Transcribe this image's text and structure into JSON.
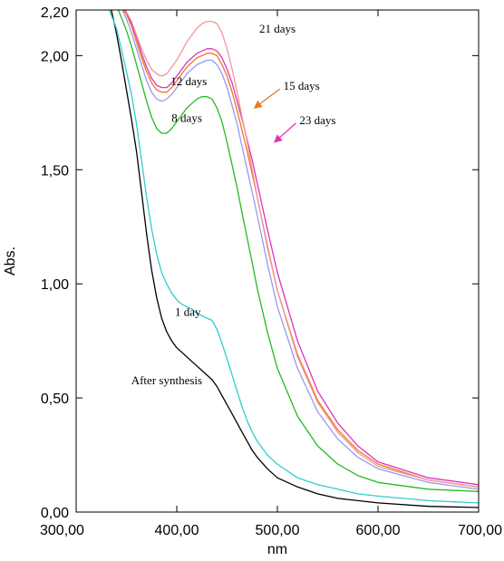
{
  "chart_data": {
    "type": "line",
    "xlabel": "nm",
    "ylabel": "Abs.",
    "xlim": [
      300,
      700
    ],
    "ylim": [
      0,
      2.2
    ],
    "x_ticks": [
      300,
      400,
      500,
      600,
      700
    ],
    "x_tick_labels": [
      "300,00",
      "400,00",
      "500,00",
      "600,00",
      "700,00"
    ],
    "y_ticks": [
      0,
      0.5,
      1.0,
      1.5,
      2.0,
      2.2
    ],
    "y_tick_labels": [
      "0,00",
      "0,50",
      "1,00",
      "1,50",
      "2,00",
      "2,20"
    ],
    "grid": false,
    "legend": "none",
    "series": [
      {
        "name": "After synthesis",
        "color": "#000000",
        "x": [
          335,
          340,
          345,
          350,
          355,
          360,
          365,
          370,
          375,
          380,
          385,
          390,
          395,
          400,
          405,
          410,
          415,
          420,
          425,
          430,
          435,
          440,
          445,
          450,
          455,
          460,
          465,
          470,
          475,
          480,
          490,
          500,
          520,
          540,
          560,
          580,
          600,
          650,
          700
        ],
        "y": [
          2.2,
          2.1,
          1.98,
          1.85,
          1.72,
          1.58,
          1.4,
          1.22,
          1.06,
          0.94,
          0.85,
          0.79,
          0.75,
          0.72,
          0.7,
          0.68,
          0.66,
          0.64,
          0.62,
          0.6,
          0.58,
          0.55,
          0.51,
          0.47,
          0.43,
          0.39,
          0.35,
          0.31,
          0.27,
          0.24,
          0.19,
          0.15,
          0.11,
          0.08,
          0.06,
          0.05,
          0.04,
          0.025,
          0.02
        ]
      },
      {
        "name": "1 day",
        "color": "#33cccc",
        "x": [
          333,
          340,
          345,
          350,
          355,
          360,
          365,
          370,
          375,
          380,
          385,
          390,
          395,
          400,
          405,
          410,
          415,
          420,
          425,
          430,
          435,
          440,
          445,
          450,
          455,
          460,
          465,
          470,
          475,
          480,
          490,
          500,
          520,
          540,
          560,
          580,
          600,
          650,
          700
        ],
        "y": [
          2.2,
          2.12,
          2.03,
          1.93,
          1.83,
          1.7,
          1.54,
          1.38,
          1.24,
          1.13,
          1.05,
          1.0,
          0.96,
          0.93,
          0.91,
          0.9,
          0.89,
          0.87,
          0.86,
          0.85,
          0.84,
          0.8,
          0.74,
          0.67,
          0.6,
          0.53,
          0.46,
          0.4,
          0.35,
          0.31,
          0.25,
          0.21,
          0.15,
          0.12,
          0.1,
          0.08,
          0.07,
          0.05,
          0.04
        ]
      },
      {
        "name": "8 days",
        "color": "#22bb22",
        "x": [
          342,
          350,
          355,
          360,
          365,
          370,
          375,
          380,
          385,
          390,
          395,
          400,
          405,
          410,
          415,
          420,
          425,
          430,
          435,
          440,
          445,
          450,
          455,
          460,
          465,
          470,
          475,
          480,
          490,
          500,
          520,
          540,
          560,
          580,
          600,
          650,
          700
        ],
        "y": [
          2.2,
          2.11,
          2.04,
          1.96,
          1.88,
          1.8,
          1.73,
          1.68,
          1.66,
          1.66,
          1.68,
          1.71,
          1.74,
          1.77,
          1.79,
          1.81,
          1.82,
          1.82,
          1.81,
          1.77,
          1.71,
          1.62,
          1.52,
          1.42,
          1.31,
          1.2,
          1.09,
          0.98,
          0.79,
          0.63,
          0.42,
          0.29,
          0.21,
          0.16,
          0.13,
          0.1,
          0.09
        ]
      },
      {
        "name": "12 days",
        "color": "#9999ee",
        "x": [
          346,
          350,
          355,
          360,
          365,
          370,
          375,
          380,
          385,
          390,
          395,
          400,
          405,
          410,
          415,
          420,
          425,
          430,
          435,
          440,
          445,
          450,
          455,
          460,
          465,
          470,
          475,
          480,
          490,
          500,
          520,
          540,
          560,
          580,
          600,
          650,
          700
        ],
        "y": [
          2.2,
          2.16,
          2.1,
          2.03,
          1.96,
          1.89,
          1.84,
          1.81,
          1.8,
          1.81,
          1.83,
          1.86,
          1.89,
          1.92,
          1.94,
          1.96,
          1.97,
          1.98,
          1.98,
          1.96,
          1.92,
          1.86,
          1.78,
          1.7,
          1.6,
          1.5,
          1.4,
          1.3,
          1.09,
          0.9,
          0.63,
          0.44,
          0.32,
          0.24,
          0.19,
          0.13,
          0.1
        ]
      },
      {
        "name": "15 days",
        "color": "#ee7722",
        "x": [
          347,
          350,
          355,
          360,
          365,
          370,
          375,
          380,
          385,
          390,
          395,
          400,
          405,
          410,
          415,
          420,
          425,
          430,
          435,
          440,
          445,
          450,
          455,
          460,
          465,
          470,
          475,
          480,
          490,
          500,
          520,
          540,
          560,
          580,
          600,
          650,
          700
        ],
        "y": [
          2.2,
          2.18,
          2.13,
          2.06,
          1.99,
          1.93,
          1.88,
          1.85,
          1.84,
          1.84,
          1.86,
          1.89,
          1.92,
          1.95,
          1.97,
          1.99,
          2.0,
          2.01,
          2.01,
          2.0,
          1.96,
          1.91,
          1.84,
          1.76,
          1.67,
          1.58,
          1.48,
          1.38,
          1.17,
          0.97,
          0.69,
          0.49,
          0.36,
          0.27,
          0.21,
          0.14,
          0.11
        ]
      },
      {
        "name": "23 days",
        "color": "#dd33bb",
        "x": [
          348,
          350,
          355,
          360,
          365,
          370,
          375,
          380,
          385,
          390,
          395,
          400,
          405,
          410,
          415,
          420,
          425,
          430,
          435,
          440,
          445,
          450,
          455,
          460,
          465,
          470,
          475,
          480,
          490,
          500,
          520,
          540,
          560,
          580,
          600,
          650,
          700
        ],
        "y": [
          2.2,
          2.19,
          2.14,
          2.08,
          2.01,
          1.95,
          1.9,
          1.87,
          1.86,
          1.86,
          1.88,
          1.91,
          1.94,
          1.97,
          1.99,
          2.01,
          2.02,
          2.03,
          2.03,
          2.02,
          1.99,
          1.94,
          1.88,
          1.8,
          1.72,
          1.63,
          1.54,
          1.44,
          1.24,
          1.05,
          0.75,
          0.53,
          0.39,
          0.29,
          0.22,
          0.15,
          0.12
        ]
      },
      {
        "name": "21 days",
        "color": "#ee9999",
        "x": [
          349,
          355,
          360,
          365,
          370,
          375,
          380,
          385,
          390,
          395,
          400,
          405,
          410,
          415,
          420,
          425,
          430,
          435,
          440,
          445,
          450,
          455,
          460,
          465,
          470,
          475,
          480,
          490,
          500,
          520,
          540,
          560,
          580,
          600,
          650,
          700
        ],
        "y": [
          2.2,
          2.15,
          2.09,
          2.03,
          1.98,
          1.94,
          1.92,
          1.91,
          1.92,
          1.95,
          1.98,
          2.02,
          2.06,
          2.09,
          2.12,
          2.14,
          2.15,
          2.15,
          2.14,
          2.1,
          2.03,
          1.94,
          1.84,
          1.73,
          1.62,
          1.5,
          1.38,
          1.16,
          0.97,
          0.68,
          0.48,
          0.35,
          0.26,
          0.2,
          0.14,
          0.11
        ]
      }
    ],
    "annotations": [
      {
        "text": "After synthesis",
        "x": 390,
        "y": 0.56,
        "anchor": "middle"
      },
      {
        "text": "1 day",
        "x": 411,
        "y": 0.86,
        "anchor": "middle"
      },
      {
        "text": "8 days",
        "x": 410,
        "y": 1.71,
        "anchor": "middle"
      },
      {
        "text": "12 days",
        "x": 412,
        "y": 1.87,
        "anchor": "middle"
      },
      {
        "text": "15 days",
        "x": 506,
        "y": 1.85,
        "anchor": "start",
        "arrow_to": [
          477,
          1.77
        ],
        "arrow_color": "#ee7722"
      },
      {
        "text": "23 days",
        "x": 522,
        "y": 1.7,
        "anchor": "start",
        "arrow_to": [
          497,
          1.62
        ],
        "arrow_color": "#dd33bb"
      },
      {
        "text": "21 days",
        "x": 482,
        "y": 2.1,
        "anchor": "start"
      }
    ]
  }
}
